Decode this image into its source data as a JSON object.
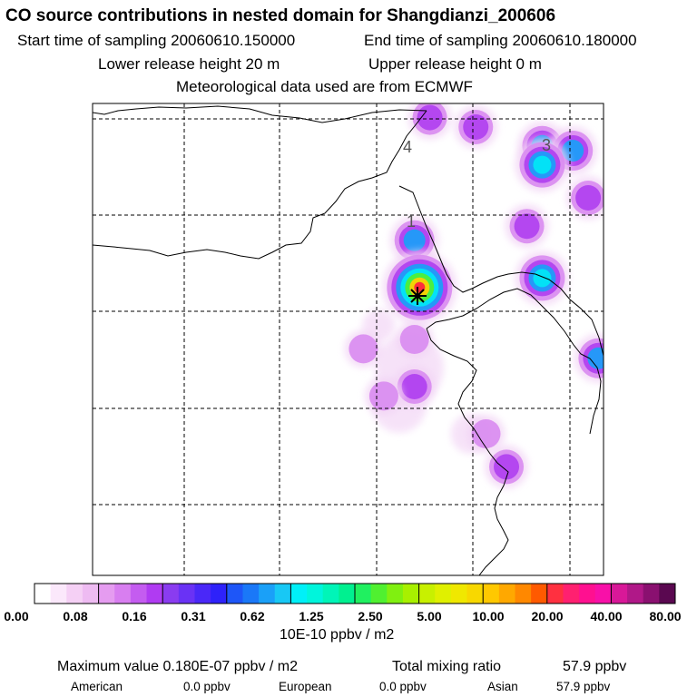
{
  "header": {
    "title": "CO  source contributions in nested domain for Shangdianzi_200606",
    "start_label": "Start time of sampling 20060610.150000",
    "end_label": "End time of sampling 20060610.180000",
    "lower_label": "Lower release height   20 m",
    "upper_label": "Upper release height    0 m",
    "met_label": "Meteorological data used are from ECMWF"
  },
  "chart_data": {
    "type": "heatmap",
    "title": "CO  source contributions in nested domain for Shangdianzi_200606",
    "markers": [
      "4",
      "3",
      "1"
    ],
    "colorbar": {
      "ticks": [
        "0.00",
        "0.08",
        "0.16",
        "0.31",
        "0.62",
        "1.25",
        "2.50",
        "5.00",
        "10.00",
        "20.00",
        "40.00",
        "80.00"
      ],
      "unit": "10E-10 ppbv / m2",
      "colors": [
        [
          "#ffffff",
          "#fbe8fb",
          "#f5d0f5",
          "#eebbf2"
        ],
        [
          "#e59cf0",
          "#d87ef0",
          "#c45cf0",
          "#b03bf2"
        ],
        [
          "#8a3cf0",
          "#6a32f5",
          "#4a28f8",
          "#2e22fa"
        ],
        [
          "#1e56f8",
          "#1a78f8",
          "#1aa0f8",
          "#18c8f5"
        ],
        [
          "#00f0f8",
          "#00f5dc",
          "#00f5b8",
          "#00f090"
        ],
        [
          "#20f060",
          "#50f030",
          "#80f010",
          "#a8f000"
        ],
        [
          "#c8f000",
          "#e0f000",
          "#f0e800",
          "#f8d800"
        ],
        [
          "#ffc800",
          "#ffa800",
          "#ff8800",
          "#ff5a00"
        ],
        [
          "#ff3040",
          "#ff2070",
          "#ff1090",
          "#f810a8"
        ],
        [
          "#d81898",
          "#b01888",
          "#8a1070",
          "#5a0850"
        ]
      ]
    },
    "hotspots": [
      {
        "lon_frac": 0.66,
        "lat_frac": 0.03,
        "level": 2
      },
      {
        "lon_frac": 0.75,
        "lat_frac": 0.05,
        "level": 2
      },
      {
        "lon_frac": 0.88,
        "lat_frac": 0.09,
        "level": 3
      },
      {
        "lon_frac": 0.94,
        "lat_frac": 0.1,
        "level": 3
      },
      {
        "lon_frac": 0.88,
        "lat_frac": 0.13,
        "level": 4
      },
      {
        "lon_frac": 0.97,
        "lat_frac": 0.2,
        "level": 2
      },
      {
        "lon_frac": 0.85,
        "lat_frac": 0.26,
        "level": 2
      },
      {
        "lon_frac": 0.88,
        "lat_frac": 0.37,
        "level": 4
      },
      {
        "lon_frac": 0.63,
        "lat_frac": 0.29,
        "level": 3
      },
      {
        "lon_frac": 0.64,
        "lat_frac": 0.39,
        "level": 7
      },
      {
        "lon_frac": 0.63,
        "lat_frac": 0.5,
        "level": 1
      },
      {
        "lon_frac": 0.99,
        "lat_frac": 0.54,
        "level": 3
      },
      {
        "lon_frac": 0.63,
        "lat_frac": 0.6,
        "level": 2
      },
      {
        "lon_frac": 0.57,
        "lat_frac": 0.62,
        "level": 1
      },
      {
        "lon_frac": 0.81,
        "lat_frac": 0.77,
        "level": 2
      },
      {
        "lon_frac": 0.53,
        "lat_frac": 0.52,
        "level": 1
      },
      {
        "lon_frac": 0.77,
        "lat_frac": 0.7,
        "level": 1
      }
    ]
  },
  "footer": {
    "max_label": "Maximum value  0.180E-07 ppbv / m2",
    "total_label": "Total mixing ratio",
    "total_value": "57.9 ppbv",
    "american_label": "American",
    "american_value": "0.0 ppbv",
    "european_label": "European",
    "european_value": "0.0 ppbv",
    "asian_label": "Asian",
    "asian_value": "57.9 ppbv"
  },
  "colors": {
    "coast": "#000000",
    "grid": "#000000"
  }
}
